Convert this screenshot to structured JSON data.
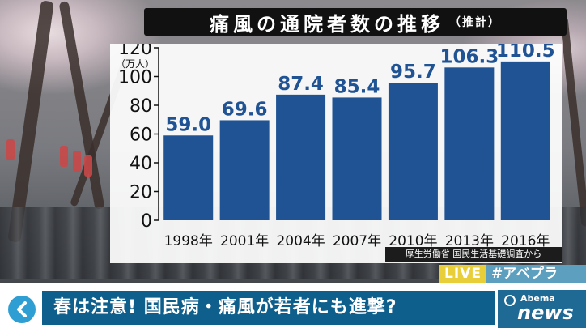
{
  "title": {
    "main": "痛風の通院者数の推移",
    "sub": "（推計）"
  },
  "chart_data": {
    "type": "bar",
    "title": "痛風の通院者数の推移（推計）",
    "ylabel": "（万人）",
    "ylim": [
      0,
      120
    ],
    "yticks": [
      0,
      20,
      40,
      60,
      80,
      100,
      120
    ],
    "categories": [
      "1998年",
      "2001年",
      "2004年",
      "2007年",
      "2010年",
      "2013年",
      "2016年"
    ],
    "values": [
      59.0,
      69.6,
      87.4,
      85.4,
      95.7,
      106.3,
      110.5
    ],
    "value_labels": [
      "59.0",
      "69.6",
      "87.4",
      "85.4",
      "95.7",
      "106.3",
      "110.5"
    ],
    "grid": false,
    "bar_color": "#1f5394"
  },
  "source": "厚生労働省 国民生活基礎調査から",
  "live": "LIVE",
  "hashtag": "#アベプラ",
  "headline": "春は注意! 国民病・痛風が若者にも進撃?",
  "logo": {
    "top": "Abema",
    "bottom": "news"
  }
}
